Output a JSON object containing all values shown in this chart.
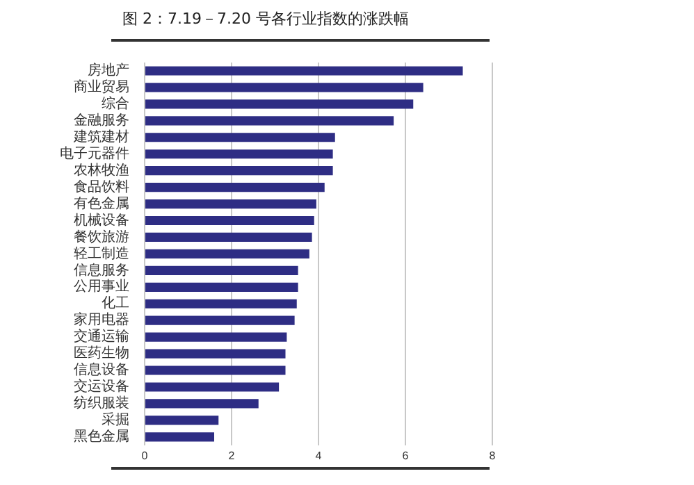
{
  "chart_data": {
    "type": "bar",
    "orientation": "horizontal",
    "title": "图 2：7.19－7.20 号各行业指数的涨跌幅",
    "categories": [
      "房地产",
      "商业贸易",
      "综合",
      "金融服务",
      "建筑建材",
      "电子元器件",
      "农林牧渔",
      "食品饮料",
      "有色金属",
      "机械设备",
      "餐饮旅游",
      "轻工制造",
      "信息服务",
      "公用事业",
      "化工",
      "家用电器",
      "交通运输",
      "医药生物",
      "信息设备",
      "交运设备",
      "纺织服装",
      "采掘",
      "黑色金属"
    ],
    "values": [
      7.32,
      6.41,
      6.18,
      5.73,
      4.38,
      4.33,
      4.33,
      4.14,
      3.95,
      3.9,
      3.85,
      3.79,
      3.53,
      3.53,
      3.5,
      3.45,
      3.27,
      3.24,
      3.24,
      3.09,
      2.62,
      1.7,
      1.6
    ],
    "color": "#2e2d84",
    "xlim": [
      0,
      8
    ],
    "xticks": [
      0,
      2,
      4,
      6,
      8
    ],
    "grid": "x"
  }
}
